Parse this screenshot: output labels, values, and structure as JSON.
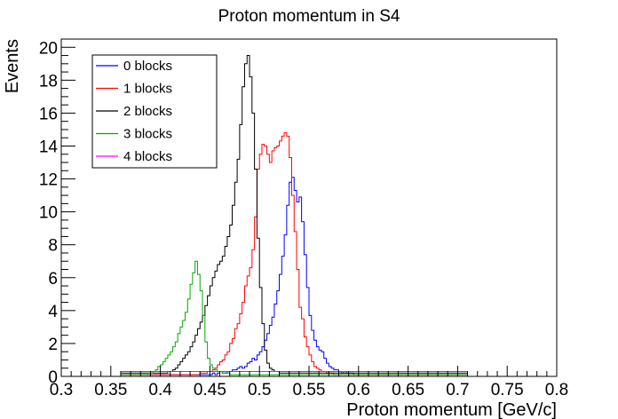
{
  "chart_data": {
    "type": "line",
    "title": "Proton momentum in S4",
    "xlabel": "Proton momentum [GeV/c]",
    "ylabel": "Events",
    "xlim": [
      0.3,
      0.8
    ],
    "ylim": [
      0,
      20.5
    ],
    "x_ticks": [
      0.3,
      0.35,
      0.4,
      0.45,
      0.5,
      0.55,
      0.6,
      0.65,
      0.7,
      0.75,
      0.8
    ],
    "x_tick_labels": [
      "0.3",
      "0.35",
      "0.4",
      "0.45",
      "0.5",
      "0.55",
      "0.6",
      "0.65",
      "0.7",
      "0.75",
      "0.8"
    ],
    "y_ticks": [
      0,
      2,
      4,
      6,
      8,
      10,
      12,
      14,
      16,
      18,
      20
    ],
    "y_tick_labels": [
      "0",
      "2",
      "4",
      "6",
      "8",
      "10",
      "12",
      "14",
      "16",
      "18",
      "20"
    ],
    "grid": false,
    "legend_position": "top-left",
    "bin_edges": [
      0.36,
      0.71
    ],
    "series": [
      {
        "name": "0 blocks",
        "color": "#0000ff",
        "values": [
          0.1,
          0.1,
          0.1,
          0.1,
          0.1,
          0.1,
          0.1,
          0.1,
          0.1,
          0.1,
          0.1,
          0.1,
          0.1,
          0.1,
          0.1,
          0.1,
          0.1,
          0.1,
          0.1,
          0.1,
          0.1,
          0.1,
          0.1,
          0.1,
          0.1,
          0.1,
          0.1,
          0.1,
          0.1,
          0.1,
          0.1,
          0.1,
          0.1,
          0.1,
          0.1,
          0.1,
          0.1,
          0.2,
          0.1,
          0.2,
          0.3,
          0.2,
          0.2,
          0.3,
          0.3,
          0.4,
          0.4,
          0.5,
          0.6,
          0.5,
          0.6,
          0.8,
          0.9,
          1.1,
          1.0,
          1.3,
          1.5,
          1.8,
          2.2,
          2.6,
          3.1,
          3.6,
          4.4,
          5.2,
          6.2,
          7.3,
          8.6,
          10.4,
          11.8,
          12.1,
          11.3,
          10.6,
          10.9,
          9.4,
          7.4,
          5.4,
          3.7,
          2.8,
          2.2,
          1.8,
          1.6,
          1.5,
          1.1,
          0.8,
          0.6,
          0.5,
          0.4,
          0.4,
          0.3,
          0.2,
          0.3,
          0.2,
          0.2,
          0.2,
          0.1,
          0.1,
          0.1,
          0.1,
          0.1,
          0.1,
          0.1,
          0.1,
          0.1,
          0.1,
          0.1,
          0.1,
          0.1,
          0.1,
          0.1,
          0.1,
          0.1,
          0.1,
          0.1,
          0.1,
          0.1,
          0.1,
          0.1,
          0.1,
          0.1,
          0.1,
          0.1,
          0.1,
          0.1,
          0.1,
          0.1,
          0.1,
          0.1,
          0.1,
          0.1,
          0.1,
          0.1,
          0.1,
          0.1,
          0.1,
          0.1,
          0.1,
          0.1,
          0.1,
          0.1,
          0.1
        ]
      },
      {
        "name": "1 blocks",
        "color": "#ff0000",
        "values": [
          0.1,
          0.1,
          0.1,
          0.1,
          0.1,
          0.1,
          0.1,
          0.1,
          0.1,
          0.1,
          0.1,
          0.1,
          0.1,
          0.1,
          0.1,
          0.1,
          0.1,
          0.1,
          0.1,
          0.1,
          0.1,
          0.1,
          0.1,
          0.1,
          0.1,
          0.1,
          0.1,
          0.1,
          0.1,
          0.1,
          0.1,
          0.1,
          0.2,
          0.2,
          0.2,
          0.3,
          0.3,
          0.4,
          0.5,
          0.7,
          0.9,
          1.0,
          1.3,
          1.5,
          2.0,
          2.3,
          2.9,
          3.2,
          3.8,
          4.5,
          5.5,
          6.1,
          6.6,
          7.7,
          9.7,
          12.6,
          13.5,
          14.1,
          14.0,
          13.5,
          13.0,
          13.7,
          13.9,
          14.0,
          14.3,
          14.6,
          14.8,
          14.6,
          13.3,
          11.0,
          8.8,
          6.5,
          4.2,
          3.5,
          2.4,
          1.8,
          1.3,
          0.9,
          0.6,
          0.5,
          0.4,
          0.3,
          0.3,
          0.2,
          0.2,
          0.2,
          0.1,
          0.1,
          0.1,
          0.1,
          0.1,
          0.1,
          0.1,
          0.1,
          0.1,
          0.1,
          0.1,
          0.1,
          0.1,
          0.1,
          0.1,
          0.1,
          0.1,
          0.1,
          0.1,
          0.1,
          0.1,
          0.1,
          0.1,
          0.1,
          0.1,
          0.1,
          0.1,
          0.1,
          0.1,
          0.1,
          0.1,
          0.1,
          0.1,
          0.1,
          0.1,
          0.1,
          0.1,
          0.1,
          0.1,
          0.1,
          0.1,
          0.1,
          0.1,
          0.1,
          0.1,
          0.1,
          0.1,
          0.1,
          0.1,
          0.1,
          0.1,
          0.1,
          0.1,
          0.1
        ]
      },
      {
        "name": "2 blocks",
        "color": "#000000",
        "values": [
          0.2,
          0.2,
          0.2,
          0.2,
          0.2,
          0.2,
          0.2,
          0.2,
          0.2,
          0.2,
          0.2,
          0.2,
          0.2,
          0.2,
          0.2,
          0.2,
          0.2,
          0.2,
          0.2,
          0.3,
          0.3,
          0.4,
          0.5,
          0.7,
          0.9,
          1.1,
          1.3,
          1.5,
          1.8,
          2.1,
          2.5,
          2.9,
          3.3,
          3.7,
          4.3,
          4.9,
          5.5,
          6.0,
          6.4,
          6.8,
          7.0,
          7.3,
          7.9,
          8.5,
          9.2,
          10.4,
          11.8,
          13.2,
          15.3,
          17.6,
          19.0,
          19.5,
          18.2,
          16.0,
          12.6,
          8.4,
          5.4,
          3.2,
          1.6,
          0.8,
          0.5,
          0.4,
          0.3,
          0.3,
          0.2,
          0.2,
          0.2,
          0.2,
          0.2,
          0.2,
          0.2,
          0.2,
          0.2,
          0.2,
          0.2,
          0.2,
          0.2,
          0.2,
          0.2,
          0.2,
          0.2,
          0.2,
          0.2,
          0.2,
          0.2,
          0.2,
          0.2,
          0.2,
          0.2,
          0.2,
          0.2,
          0.2,
          0.2,
          0.2,
          0.2,
          0.2,
          0.2,
          0.2,
          0.2,
          0.2,
          0.2,
          0.2,
          0.2,
          0.2,
          0.2,
          0.2,
          0.2,
          0.2,
          0.2,
          0.2,
          0.2,
          0.2,
          0.2,
          0.2,
          0.2,
          0.2,
          0.2,
          0.2,
          0.2,
          0.2,
          0.2,
          0.2,
          0.2,
          0.2,
          0.2,
          0.2,
          0.2,
          0.2,
          0.2,
          0.2,
          0.2,
          0.2,
          0.2,
          0.2,
          0.2,
          0.2,
          0.2,
          0.2,
          0.2,
          0.2
        ]
      },
      {
        "name": "3 blocks",
        "color": "#00aa00",
        "values": [
          0.1,
          0.1,
          0.1,
          0.1,
          0.1,
          0.1,
          0.1,
          0.1,
          0.1,
          0.1,
          0.1,
          0.2,
          0.2,
          0.3,
          0.4,
          0.6,
          0.7,
          0.9,
          1.1,
          1.3,
          1.5,
          1.8,
          2.1,
          2.6,
          3.0,
          3.4,
          3.9,
          4.7,
          5.6,
          6.3,
          7.0,
          6.2,
          5.2,
          3.7,
          2.1,
          1.1,
          0.7,
          0.5,
          0.4,
          0.3,
          0.3,
          0.2,
          0.2,
          0.2,
          0.1,
          0.1,
          0.1,
          0.1,
          0.1,
          0.1,
          0.1,
          0.1,
          0.1,
          0.1,
          0.1,
          0.1,
          0.1,
          0.1,
          0.1,
          0.1,
          0.1,
          0.1,
          0.1,
          0.1,
          0.1,
          0.1,
          0.1,
          0.1,
          0.1,
          0.1,
          0.1,
          0.1,
          0.1,
          0.1,
          0.1,
          0.1,
          0.1,
          0.1,
          0.1,
          0.1,
          0.1,
          0.1,
          0.1,
          0.1,
          0.1,
          0.1,
          0.1,
          0.1,
          0.1,
          0.1,
          0.1,
          0.1,
          0.1,
          0.1,
          0.1,
          0.1,
          0.1,
          0.1,
          0.1,
          0.1,
          0.1,
          0.1,
          0.1,
          0.1,
          0.1,
          0.1,
          0.1,
          0.1,
          0.1,
          0.1,
          0.1,
          0.1,
          0.1,
          0.1,
          0.1,
          0.1,
          0.1,
          0.1,
          0.1,
          0.1,
          0.1,
          0.1,
          0.1,
          0.1,
          0.1,
          0.1,
          0.1,
          0.1,
          0.1,
          0.1,
          0.1,
          0.1,
          0.1,
          0.1,
          0.1,
          0.1,
          0.1,
          0.1,
          0.1,
          0.1
        ]
      },
      {
        "name": "4 blocks",
        "color": "#ff00ff",
        "values": [
          0.3,
          0.3,
          0.3,
          0.3,
          0.3,
          0.3,
          0.3,
          0.3,
          0.3,
          0.3,
          0.3,
          0.3,
          0.3,
          0.3,
          0.3,
          0.3,
          0.3,
          0.3,
          0.3,
          0.3,
          0.3,
          0.3,
          0.3,
          0.3,
          0.3,
          0.3,
          0.3,
          0.3,
          0.3,
          0.3,
          0.3,
          0.3,
          0.3,
          0.3,
          0.3,
          0.3,
          0.3,
          0.3,
          0.3,
          0.3,
          0.3,
          0.3,
          0.3,
          0.3,
          0.3,
          0.3,
          0.3,
          0.3,
          0.3,
          0.3,
          0.3,
          0.3,
          0.3,
          0.3,
          0.3,
          0.3,
          0.3,
          0.3,
          0.3,
          0.3,
          0.3,
          0.3,
          0.3,
          0.3,
          0.3,
          0.3,
          0.3,
          0.3,
          0.3,
          0.3,
          0.3,
          0.3,
          0.3,
          0.3,
          0.3,
          0.3,
          0.3,
          0.3,
          0.3,
          0.3,
          0.3,
          0.3,
          0.3,
          0.3,
          0.3,
          0.3,
          0.3,
          0.3,
          0.3,
          0.3,
          0.3,
          0.3,
          0.3,
          0.3,
          0.3,
          0.3,
          0.3,
          0.3,
          0.3,
          0.3,
          0.3,
          0.3,
          0.3,
          0.3,
          0.3,
          0.3,
          0.3,
          0.3,
          0.3,
          0.3,
          0.3,
          0.3,
          0.3,
          0.3,
          0.3,
          0.3,
          0.3,
          0.3,
          0.3,
          0.3,
          0.3,
          0.3,
          0.3,
          0.3,
          0.3,
          0.3,
          0.3,
          0.3,
          0.3,
          0.3,
          0.3,
          0.3,
          0.3,
          0.3,
          0.3,
          0.3,
          0.3,
          0.3,
          0.3,
          0.3
        ]
      }
    ]
  }
}
